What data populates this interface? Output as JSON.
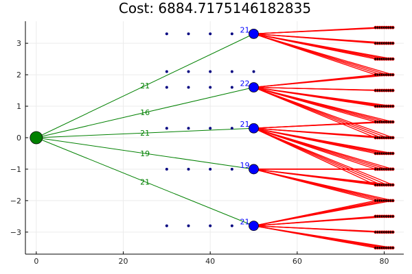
{
  "chart_data": {
    "type": "network",
    "title": "Cost: 6884.7175146182835",
    "xlim": [
      -2.5,
      84.5
    ],
    "ylim": [
      -3.7,
      3.7
    ],
    "x_ticks": [
      0,
      20,
      40,
      60,
      80
    ],
    "y_ticks": [
      -3,
      -2,
      -1,
      0,
      1,
      2,
      3
    ],
    "grid": true,
    "depot": {
      "x": 0,
      "y": 0,
      "color": "#008000"
    },
    "hubs": [
      {
        "x": 50,
        "y": 3.3,
        "label": "21"
      },
      {
        "x": 50,
        "y": 1.6,
        "label": "22"
      },
      {
        "x": 50,
        "y": 0.3,
        "label": "21"
      },
      {
        "x": 50,
        "y": -1.0,
        "label": "19"
      },
      {
        "x": 50,
        "y": -2.8,
        "label": "21"
      }
    ],
    "depot_edge_labels": [
      "21",
      "16",
      "21",
      "19",
      "21"
    ],
    "candidate_points": {
      "x": [
        30,
        35,
        40,
        45
      ],
      "y": [
        3.3,
        2.1,
        1.6,
        0.3,
        -1.0,
        -2.8
      ],
      "extra_points": [
        {
          "x": 50,
          "y": 2.1
        }
      ]
    },
    "customers": {
      "x_start": 78,
      "x_end": 82,
      "count_per_row": 9,
      "y_rows": [
        3.5,
        3.0,
        2.5,
        2.0,
        1.5,
        1.0,
        0.5,
        0.0,
        -0.5,
        -1.0,
        -1.5,
        -2.0,
        -2.5,
        -3.0,
        -3.5
      ]
    },
    "hub_assignments": [
      {
        "hub": 0,
        "rows": [
          3.5,
          3.0,
          2.5,
          2.0
        ]
      },
      {
        "hub": 1,
        "rows": [
          2.0,
          1.5,
          1.0,
          0.5,
          0.0
        ]
      },
      {
        "hub": 2,
        "rows": [
          0.5,
          0.0,
          -0.5,
          -1.0,
          -1.5
        ]
      },
      {
        "hub": 3,
        "rows": [
          -1.0,
          -1.5,
          -2.0
        ]
      },
      {
        "hub": 4,
        "rows": [
          -2.0,
          -2.5,
          -3.0,
          -3.5
        ]
      }
    ],
    "colors": {
      "depot_edges": "#008000",
      "hub_fill": "#0000ff",
      "candidate": "#000080",
      "customer_edges": "#ff0000",
      "grid": "#ebebeb"
    }
  }
}
